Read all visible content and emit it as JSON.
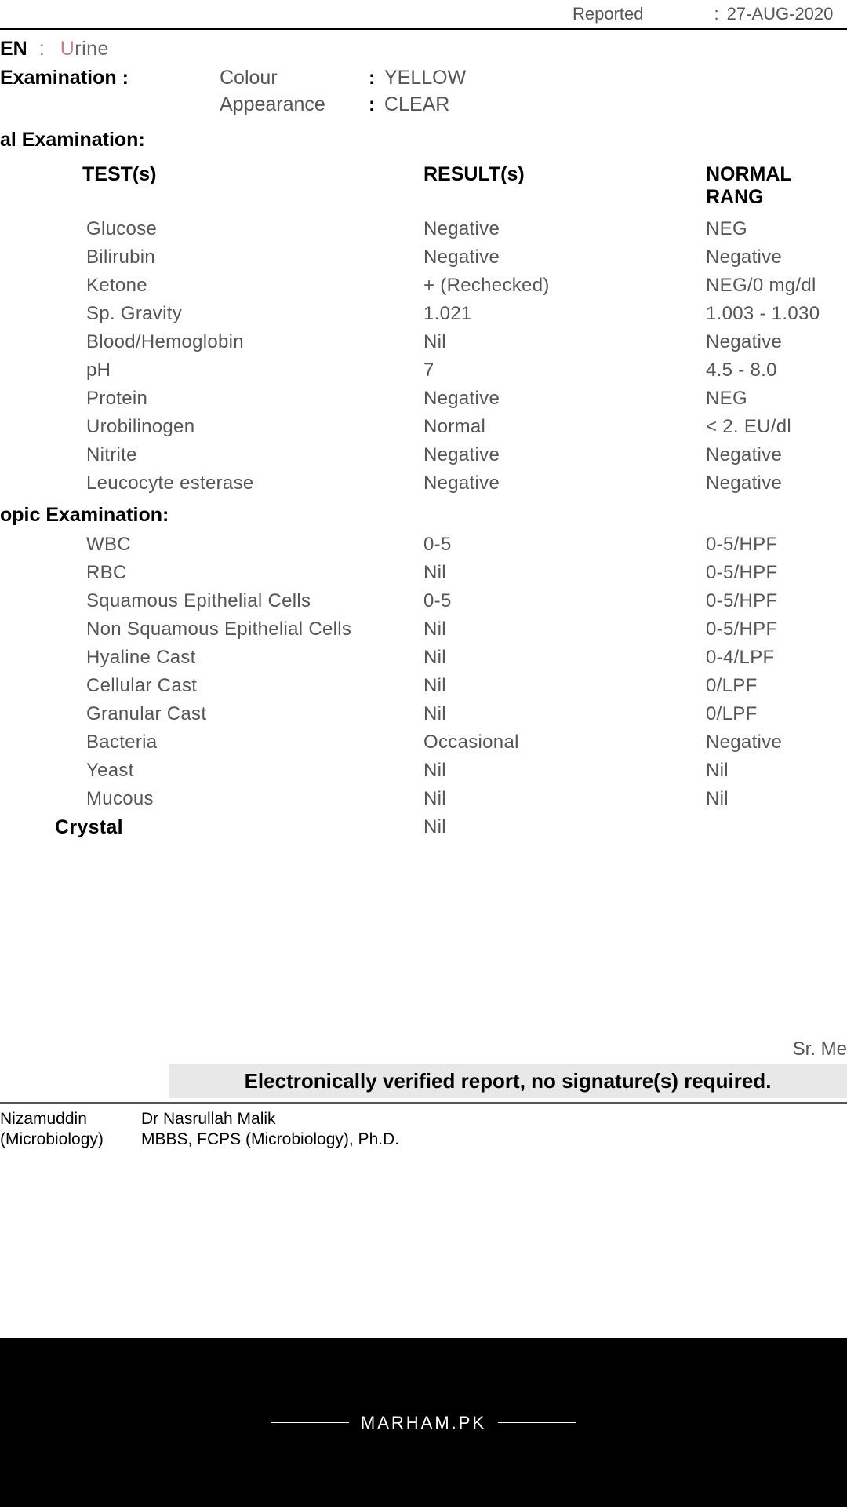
{
  "header": {
    "reported_label": "Reported",
    "reported_date": "27-AUG-2020"
  },
  "specimen": {
    "label": "EN",
    "colon": ":",
    "value_u": "U",
    "value_rest": "rine"
  },
  "physical_exam": {
    "heading": " Examination :",
    "rows": [
      {
        "key": "Colour",
        "value": "YELLOW"
      },
      {
        "key": "Appearance",
        "value": "CLEAR"
      }
    ]
  },
  "chemical_heading": "al Examination:",
  "table_headers": {
    "test": "TEST(s)",
    "result": "RESULT(s)",
    "range": "NORMAL RANG"
  },
  "chemical_rows": [
    {
      "test": "Glucose",
      "result": "Negative",
      "range": "NEG"
    },
    {
      "test": "Bilirubin",
      "result": "Negative",
      "range": "Negative"
    },
    {
      "test": "Ketone",
      "result": "+ (Rechecked)",
      "range": "NEG/0 mg/dl"
    },
    {
      "test": "Sp. Gravity",
      "result": "1.021",
      "range": "1.003 - 1.030"
    },
    {
      "test": "Blood/Hemoglobin",
      "result": "Nil",
      "range": "Negative"
    },
    {
      "test": "pH",
      "result": "7",
      "range": "4.5 - 8.0"
    },
    {
      "test": "Protein",
      "result": "Negative",
      "range": "NEG"
    },
    {
      "test": "Urobilinogen",
      "result": "Normal",
      "range": "< 2. EU/dl"
    },
    {
      "test": "Nitrite",
      "result": "Negative",
      "range": "Negative"
    },
    {
      "test": "Leucocyte esterase",
      "result": "Negative",
      "range": "Negative"
    }
  ],
  "microscopic_heading": "opic Examination:",
  "microscopic_rows": [
    {
      "test": "WBC",
      "result": " 0-5",
      "range": "0-5/HPF"
    },
    {
      "test": "RBC",
      "result": " Nil",
      "range": "0-5/HPF"
    },
    {
      "test": "Squamous Epithelial Cells",
      "result": "0-5",
      "range": "0-5/HPF"
    },
    {
      "test": "Non Squamous Epithelial Cells",
      "result": "Nil",
      "range": "0-5/HPF"
    },
    {
      "test": "Hyaline Cast",
      "result": "Nil",
      "range": "0-4/LPF"
    },
    {
      "test": "Cellular Cast",
      "result": "Nil",
      "range": "0/LPF"
    },
    {
      "test": "Granular Cast",
      "result": "Nil",
      "range": "0/LPF"
    },
    {
      "test": "Bacteria",
      "result": "Occasional",
      "range": "Negative"
    },
    {
      "test": "Yeast",
      "result": "Nil",
      "range": "Nil"
    },
    {
      "test": "Mucous",
      "result": "Nil",
      "range": "Nil"
    }
  ],
  "crystal": {
    "label": "Crystal",
    "result": "Nil",
    "range": ""
  },
  "sr_me": "Sr. Me",
  "verified_text": "Electronically verified report, no signature(s) required.",
  "footer": {
    "name1": "Nizamuddin",
    "name2": "Dr Nasrullah Malik",
    "sub1": "(Microbiology)",
    "sub2": "MBBS, FCPS (Microbiology), Ph.D."
  },
  "watermark": "MARHAM.PK"
}
